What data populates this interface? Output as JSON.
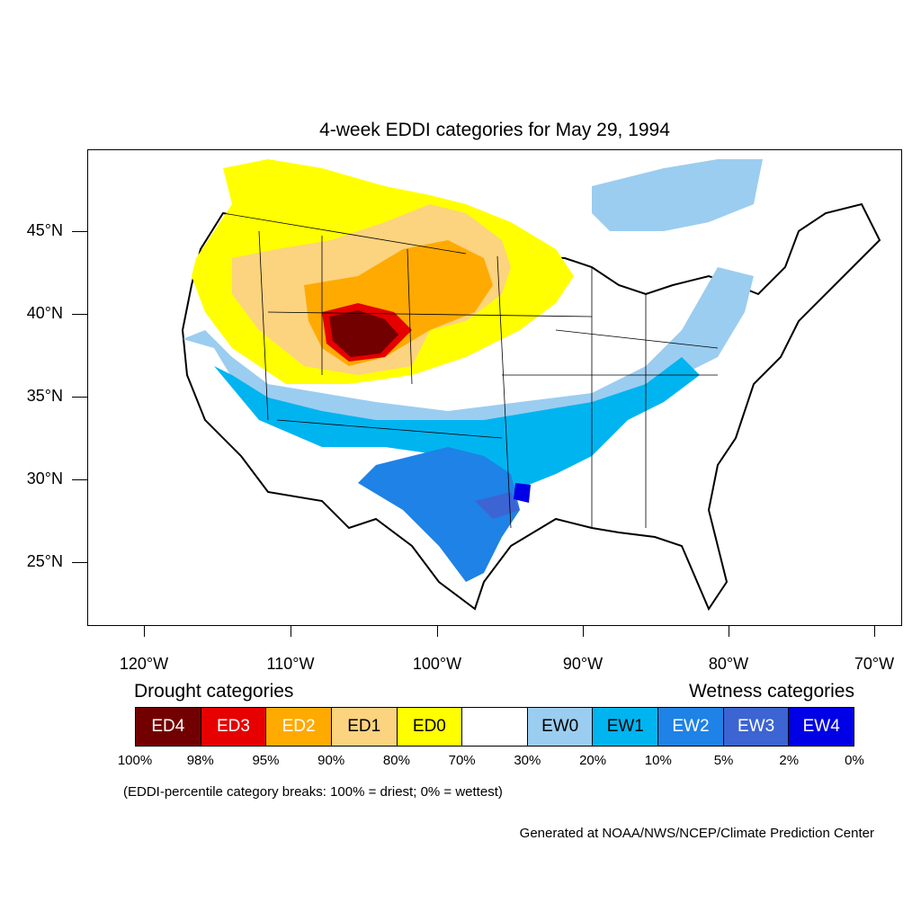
{
  "title": "4-week EDDI categories for May 29, 1994",
  "lat_labels": [
    "45°N",
    "40°N",
    "35°N",
    "30°N",
    "25°N"
  ],
  "lon_labels": [
    "120°W",
    "110°W",
    "100°W",
    "90°W",
    "80°W",
    "70°W"
  ],
  "legend": {
    "drought_heading": "Drought categories",
    "wetness_heading": "Wetness categories",
    "categories": [
      {
        "label": "ED4",
        "color": "#730000",
        "text_color": "#ffffff"
      },
      {
        "label": "ED3",
        "color": "#e60000",
        "text_color": "#ffffff"
      },
      {
        "label": "ED2",
        "color": "#ffaa00",
        "text_color": "#ffffff"
      },
      {
        "label": "ED1",
        "color": "#fcd37f",
        "text_color": "#000000"
      },
      {
        "label": "ED0",
        "color": "#ffff00",
        "text_color": "#000000"
      },
      {
        "label": "",
        "color": "#ffffff",
        "text_color": "#000000"
      },
      {
        "label": "EW0",
        "color": "#9bcdf0",
        "text_color": "#000000"
      },
      {
        "label": "EW1",
        "color": "#00b4f0",
        "text_color": "#000000"
      },
      {
        "label": "EW2",
        "color": "#1e82e6",
        "text_color": "#ffffff"
      },
      {
        "label": "EW3",
        "color": "#3c64d2",
        "text_color": "#ffffff"
      },
      {
        "label": "EW4",
        "color": "#0000e6",
        "text_color": "#ffffff"
      }
    ],
    "breaks": [
      "100%",
      "98%",
      "95%",
      "90%",
      "80%",
      "70%",
      "30%",
      "20%",
      "10%",
      "5%",
      "2%",
      "0%"
    ]
  },
  "note": "(EDDI-percentile category breaks: 100% = driest; 0% = wettest)",
  "credit": "Generated at NOAA/NWS/NCEP/Climate Prediction Center"
}
